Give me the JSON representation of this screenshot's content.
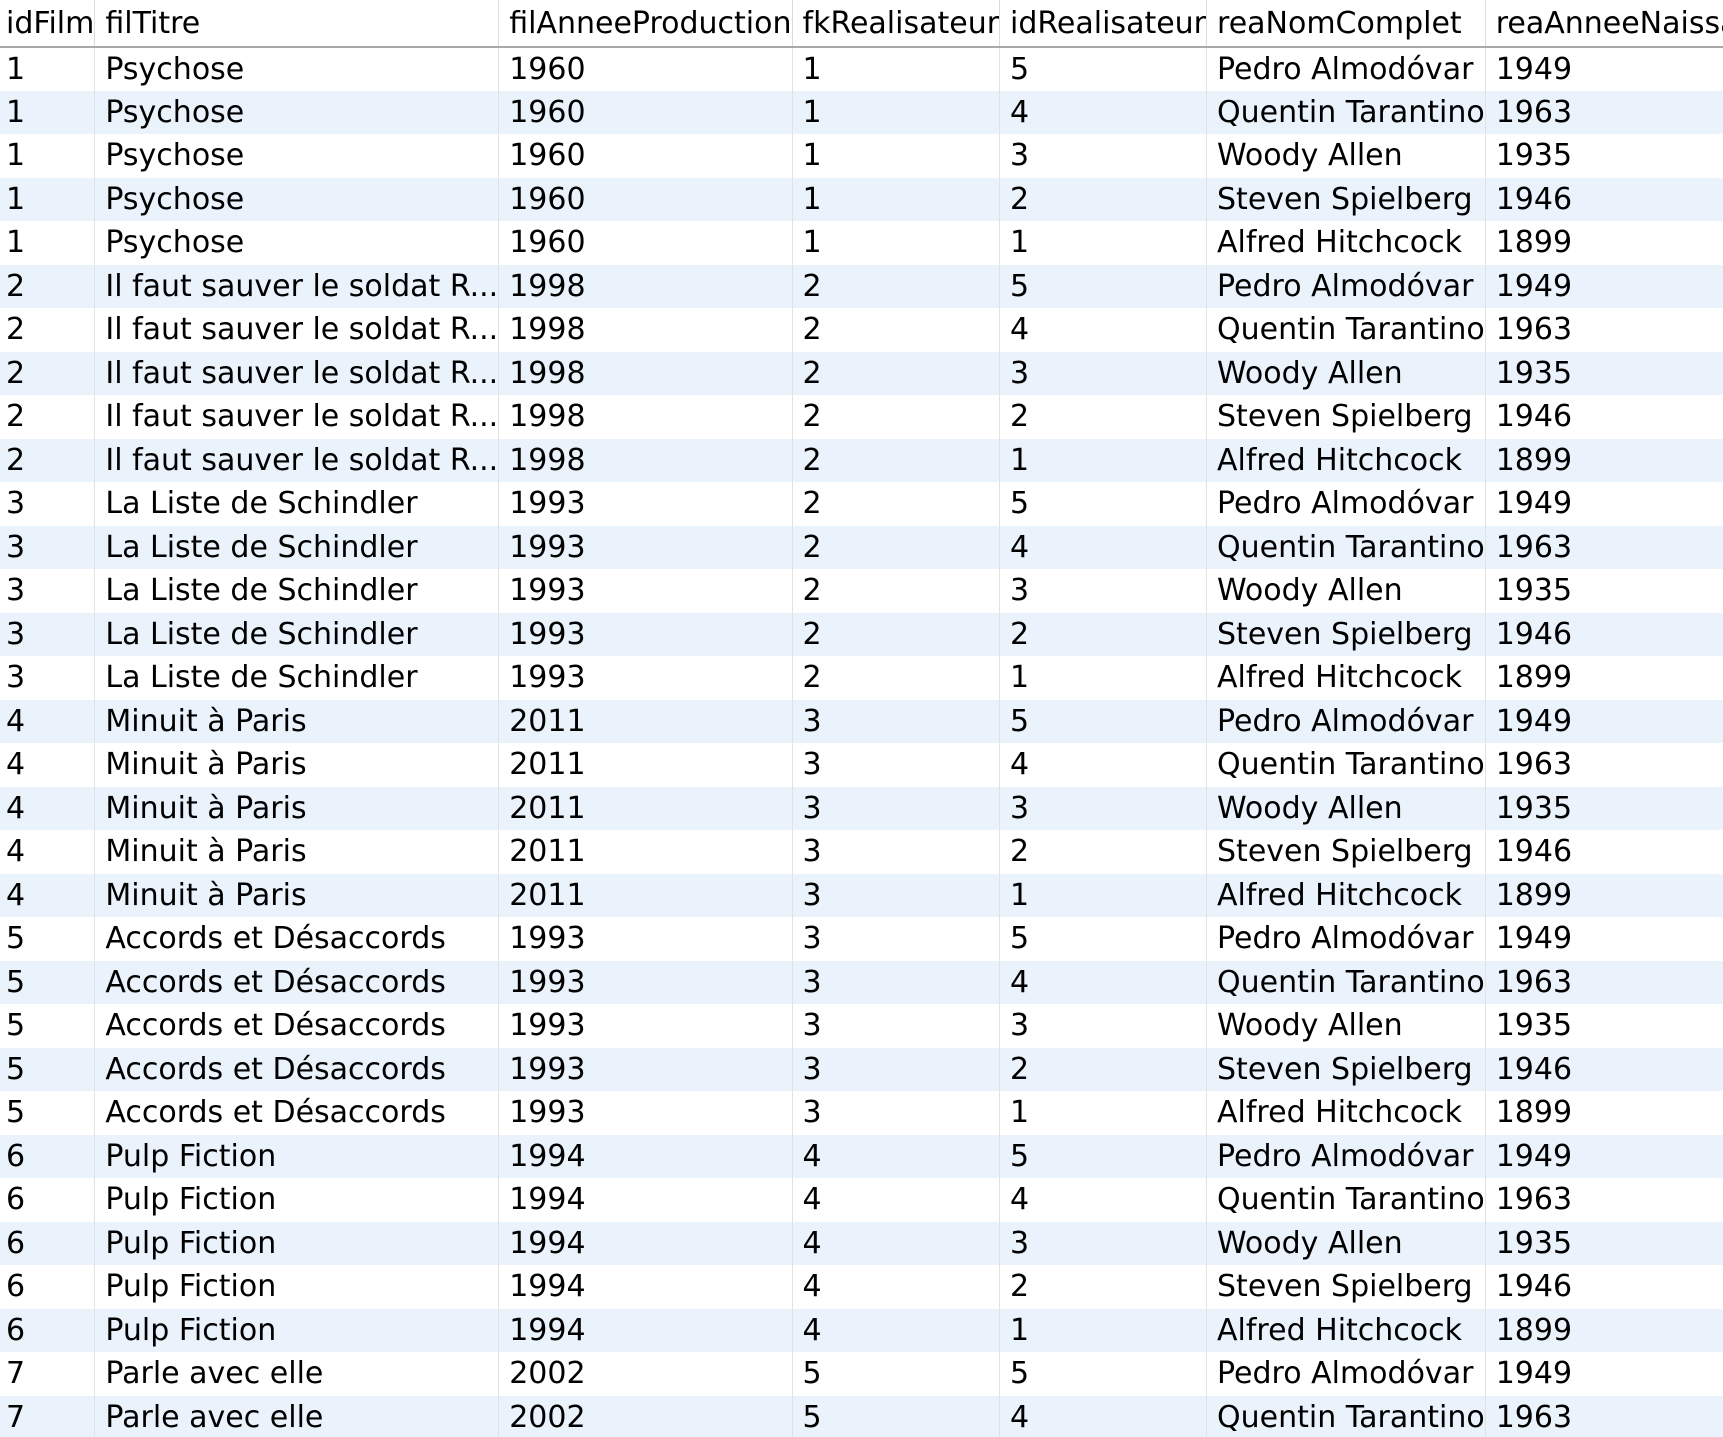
{
  "columns": [
    "idFilm",
    "filTitre",
    "filAnneeProduction",
    "fkRealisateur",
    "idRealisateur",
    "reaNomComplet",
    "reaAnneeNaissance"
  ],
  "rows": [
    [
      "1",
      "Psychose",
      "1960",
      "1",
      "5",
      "Pedro Almodóvar",
      "1949"
    ],
    [
      "1",
      "Psychose",
      "1960",
      "1",
      "4",
      "Quentin Tarantino",
      "1963"
    ],
    [
      "1",
      "Psychose",
      "1960",
      "1",
      "3",
      "Woody Allen",
      "1935"
    ],
    [
      "1",
      "Psychose",
      "1960",
      "1",
      "2",
      "Steven Spielberg",
      "1946"
    ],
    [
      "1",
      "Psychose",
      "1960",
      "1",
      "1",
      "Alfred Hitchcock",
      "1899"
    ],
    [
      "2",
      "Il faut sauver le soldat R...",
      "1998",
      "2",
      "5",
      "Pedro Almodóvar",
      "1949"
    ],
    [
      "2",
      "Il faut sauver le soldat R...",
      "1998",
      "2",
      "4",
      "Quentin Tarantino",
      "1963"
    ],
    [
      "2",
      "Il faut sauver le soldat R...",
      "1998",
      "2",
      "3",
      "Woody Allen",
      "1935"
    ],
    [
      "2",
      "Il faut sauver le soldat R...",
      "1998",
      "2",
      "2",
      "Steven Spielberg",
      "1946"
    ],
    [
      "2",
      "Il faut sauver le soldat R...",
      "1998",
      "2",
      "1",
      "Alfred Hitchcock",
      "1899"
    ],
    [
      "3",
      "La Liste de Schindler",
      "1993",
      "2",
      "5",
      "Pedro Almodóvar",
      "1949"
    ],
    [
      "3",
      "La Liste de Schindler",
      "1993",
      "2",
      "4",
      "Quentin Tarantino",
      "1963"
    ],
    [
      "3",
      "La Liste de Schindler",
      "1993",
      "2",
      "3",
      "Woody Allen",
      "1935"
    ],
    [
      "3",
      "La Liste de Schindler",
      "1993",
      "2",
      "2",
      "Steven Spielberg",
      "1946"
    ],
    [
      "3",
      "La Liste de Schindler",
      "1993",
      "2",
      "1",
      "Alfred Hitchcock",
      "1899"
    ],
    [
      "4",
      "Minuit à Paris",
      "2011",
      "3",
      "5",
      "Pedro Almodóvar",
      "1949"
    ],
    [
      "4",
      "Minuit à Paris",
      "2011",
      "3",
      "4",
      "Quentin Tarantino",
      "1963"
    ],
    [
      "4",
      "Minuit à Paris",
      "2011",
      "3",
      "3",
      "Woody Allen",
      "1935"
    ],
    [
      "4",
      "Minuit à Paris",
      "2011",
      "3",
      "2",
      "Steven Spielberg",
      "1946"
    ],
    [
      "4",
      "Minuit à Paris",
      "2011",
      "3",
      "1",
      "Alfred Hitchcock",
      "1899"
    ],
    [
      "5",
      "Accords et Désaccords",
      "1993",
      "3",
      "5",
      "Pedro Almodóvar",
      "1949"
    ],
    [
      "5",
      "Accords et Désaccords",
      "1993",
      "3",
      "4",
      "Quentin Tarantino",
      "1963"
    ],
    [
      "5",
      "Accords et Désaccords",
      "1993",
      "3",
      "3",
      "Woody Allen",
      "1935"
    ],
    [
      "5",
      "Accords et Désaccords",
      "1993",
      "3",
      "2",
      "Steven Spielberg",
      "1946"
    ],
    [
      "5",
      "Accords et Désaccords",
      "1993",
      "3",
      "1",
      "Alfred Hitchcock",
      "1899"
    ],
    [
      "6",
      "Pulp Fiction",
      "1994",
      "4",
      "5",
      "Pedro Almodóvar",
      "1949"
    ],
    [
      "6",
      "Pulp Fiction",
      "1994",
      "4",
      "4",
      "Quentin Tarantino",
      "1963"
    ],
    [
      "6",
      "Pulp Fiction",
      "1994",
      "4",
      "3",
      "Woody Allen",
      "1935"
    ],
    [
      "6",
      "Pulp Fiction",
      "1994",
      "4",
      "2",
      "Steven Spielberg",
      "1946"
    ],
    [
      "6",
      "Pulp Fiction",
      "1994",
      "4",
      "1",
      "Alfred Hitchcock",
      "1899"
    ],
    [
      "7",
      "Parle avec elle",
      "2002",
      "5",
      "5",
      "Pedro Almodóvar",
      "1949"
    ],
    [
      "7",
      "Parle avec elle",
      "2002",
      "5",
      "4",
      "Quentin Tarantino",
      "1963"
    ]
  ],
  "colors": {
    "header_border": "#a8a8a8",
    "alt_row": "#eaf2fb",
    "row": "#ffffff",
    "grid_line": "#e2e2e2"
  }
}
